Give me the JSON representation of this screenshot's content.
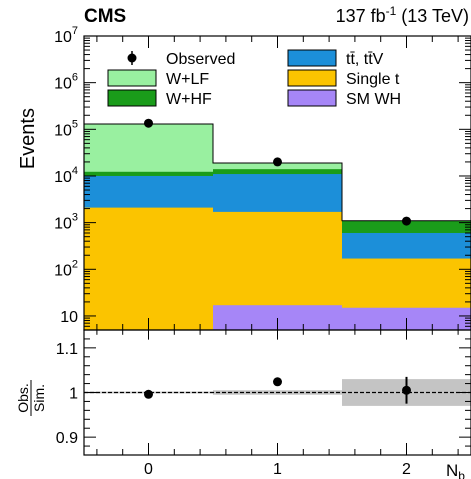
{
  "header": {
    "experiment": "CMS",
    "lumi_value": "137 fb",
    "lumi_exp": "-1",
    "energy": " (13 TeV)"
  },
  "chart_data": [
    {
      "type": "bar",
      "stacked": true,
      "ylabel": "Events",
      "yscale": "log",
      "ylim": [
        5,
        10000000
      ],
      "xlim": [
        -0.5,
        2.5
      ],
      "x": [
        0,
        1,
        2
      ],
      "ytick_labels": [
        {
          "base": "10",
          "exp": "",
          "value": 10
        },
        {
          "base": "10",
          "exp": "2",
          "value": 100
        },
        {
          "base": "10",
          "exp": "3",
          "value": 1000
        },
        {
          "base": "10",
          "exp": "4",
          "value": 10000
        },
        {
          "base": "10",
          "exp": "5",
          "value": 100000
        },
        {
          "base": "10",
          "exp": "6",
          "value": 1000000
        },
        {
          "base": "10",
          "exp": "7",
          "value": 10000000
        }
      ],
      "legend_placement": "top",
      "legend": [
        {
          "label": "Observed",
          "kind": "marker",
          "color": "#000000"
        },
        {
          "label": "tt̄, tt̄V",
          "kind": "box",
          "color": "#1c8fd9"
        },
        {
          "label": "W+LF",
          "kind": "box",
          "color": "#99f0a0"
        },
        {
          "label": "Single t",
          "kind": "box",
          "color": "#fbc400"
        },
        {
          "label": "W+HF",
          "kind": "box",
          "color": "#1a9c1a"
        },
        {
          "label": "SM WH",
          "kind": "box",
          "color": "#a686f7"
        }
      ],
      "series": [
        {
          "name": "SM WH",
          "color": "#a686f7",
          "values": [
            5,
            17,
            15
          ]
        },
        {
          "name": "Single t",
          "color": "#fbc400",
          "values": [
            2100,
            1700,
            170
          ]
        },
        {
          "name": "tt̄, tt̄V",
          "color": "#1c8fd9",
          "values": [
            10000,
            11000,
            600
          ]
        },
        {
          "name": "W+HF",
          "color": "#1a9c1a",
          "values": [
            12300,
            14000,
            1100
          ]
        },
        {
          "name": "W+LF",
          "color": "#99f0a0",
          "values": [
            130000,
            19000,
            1100
          ]
        }
      ],
      "observed": [
        135000,
        20000,
        1080
      ]
    },
    {
      "type": "scatter",
      "ylabel_num": "Obs.",
      "ylabel_den": "Sim.",
      "xlabel": "N",
      "xlabel_sub": "b",
      "ylim": [
        0.86,
        1.14
      ],
      "xlim": [
        -0.5,
        2.5
      ],
      "yticks": [
        "0.9",
        "1",
        "1.1"
      ],
      "xtick_labels": [
        "0",
        "1",
        "2"
      ],
      "reference_line": 1,
      "band_color": "#c4c4c4",
      "band": [
        [
          0.998,
          1.002
        ],
        [
          0.995,
          1.005
        ],
        [
          0.97,
          1.03
        ]
      ],
      "ratio": [
        {
          "x": 0,
          "y": 0.996,
          "err": 0.003
        },
        {
          "x": 1,
          "y": 1.024,
          "err": 0.007
        },
        {
          "x": 2,
          "y": 1.005,
          "err": 0.03
        }
      ]
    }
  ]
}
